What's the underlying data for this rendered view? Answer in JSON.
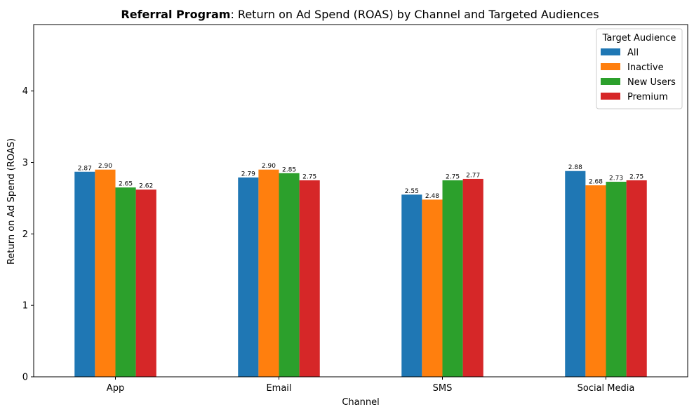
{
  "chart_data": {
    "type": "bar",
    "title_bold": "Referral Program",
    "title_rest": ": Return on Ad Spend (ROAS) by Channel and Targeted Audiences",
    "xlabel": "Channel",
    "ylabel": "Return on Ad Spend (ROAS)",
    "ylim": [
      0,
      4.93
    ],
    "yticks": [
      0,
      1,
      2,
      3,
      4
    ],
    "categories": [
      "App",
      "Email",
      "SMS",
      "Social Media"
    ],
    "legend": {
      "title": "Target Audience",
      "placement": "top-right"
    },
    "grid": false,
    "series": [
      {
        "name": "All",
        "color": "#1f77b4",
        "values": [
          2.87,
          2.79,
          2.55,
          2.88
        ],
        "labels": [
          "2.87",
          "2.79",
          "2.55",
          "2.88"
        ]
      },
      {
        "name": "Inactive",
        "color": "#ff7f0e",
        "values": [
          2.9,
          2.9,
          2.48,
          2.68
        ],
        "labels": [
          "2.90",
          "2.90",
          "2.48",
          "2.68"
        ]
      },
      {
        "name": "New Users",
        "color": "#2ca02c",
        "values": [
          2.65,
          2.85,
          2.75,
          2.73
        ],
        "labels": [
          "2.65",
          "2.85",
          "2.75",
          "2.73"
        ]
      },
      {
        "name": "Premium",
        "color": "#d62728",
        "values": [
          2.62,
          2.75,
          2.77,
          2.75
        ],
        "labels": [
          "2.62",
          "2.75",
          "2.77",
          "2.75"
        ]
      }
    ]
  }
}
